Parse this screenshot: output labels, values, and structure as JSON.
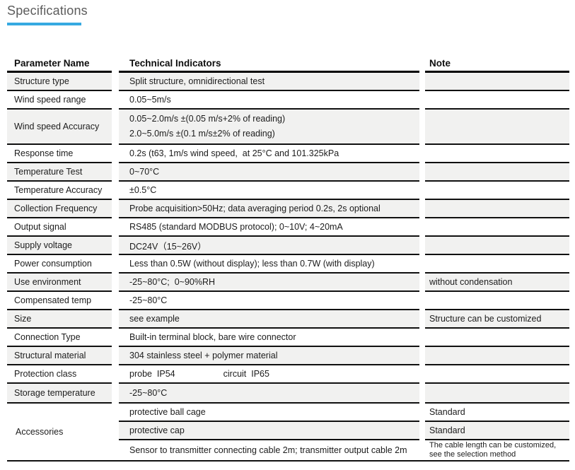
{
  "page": {
    "title": "Specifications"
  },
  "colors": {
    "accent_underline": "#36a9e1",
    "row_shade": "#f1f1f0",
    "rule_line": "#101010",
    "title_text": "#5c5c5c"
  },
  "table": {
    "headers": {
      "param": "Parameter Name",
      "indicator": "Technical Indicators",
      "note": "Note"
    },
    "rows": [
      {
        "param": "Structure type",
        "indicator": "Split structure, omnidirectional test",
        "note": ""
      },
      {
        "param": "Wind speed range",
        "indicator": "0.05~5m/s",
        "note": ""
      },
      {
        "param": "Wind speed Accuracy",
        "indicator_line1": "0.05~2.0m/s ±(0.05 m/s+2% of reading)",
        "indicator_line2": "2.0~5.0m/s ±(0.1 m/s±2% of reading)",
        "note": ""
      },
      {
        "param": "Response time",
        "indicator": "0.2s (t63, 1m/s wind speed,  at 25°C and 101.325kPa",
        "note": ""
      },
      {
        "param": "Temperature Test",
        "indicator": "0~70°C",
        "note": ""
      },
      {
        "param": "Temperature Accuracy",
        "indicator": "±0.5°C",
        "note": ""
      },
      {
        "param": "Collection Frequency",
        "indicator": "Probe acquisition>50Hz; data averaging period 0.2s, 2s optional",
        "note": ""
      },
      {
        "param": "Output signal",
        "indicator": "RS485 (standard MODBUS protocol); 0~10V; 4~20mA",
        "note": ""
      },
      {
        "param": "Supply voltage",
        "indicator": "DC24V（15~26V）",
        "note": ""
      },
      {
        "param": "Power consumption",
        "indicator": "Less than 0.5W (without display); less than 0.7W (with display)",
        "note": ""
      },
      {
        "param": "Use environment",
        "indicator": "-25~80°C;  0~90%RH",
        "note": "without condensation"
      },
      {
        "param": "Compensated temp",
        "indicator": "-25~80°C",
        "note": ""
      },
      {
        "param": "Size",
        "indicator": "see example",
        "note": "Structure can be customized"
      },
      {
        "param": "Connection Type",
        "indicator": "Built-in terminal block, bare wire connector",
        "note": ""
      },
      {
        "param": "Structural material",
        "indicator": "304 stainless steel + polymer material",
        "note": ""
      },
      {
        "param": "Protection class",
        "indicator_part1": "probe  IP54",
        "indicator_part2": "circuit  IP65",
        "note": ""
      },
      {
        "param": "Storage temperature",
        "indicator": "-25~80°C",
        "note": ""
      }
    ],
    "accessories": {
      "param": "Accessories",
      "items": [
        {
          "indicator": "protective ball cage",
          "note": "Standard"
        },
        {
          "indicator": "protective cap",
          "note": "Standard"
        },
        {
          "indicator": "Sensor to transmitter connecting cable 2m; transmitter output cable 2m",
          "note": "The cable length can be customized, see the selection method"
        }
      ]
    }
  }
}
